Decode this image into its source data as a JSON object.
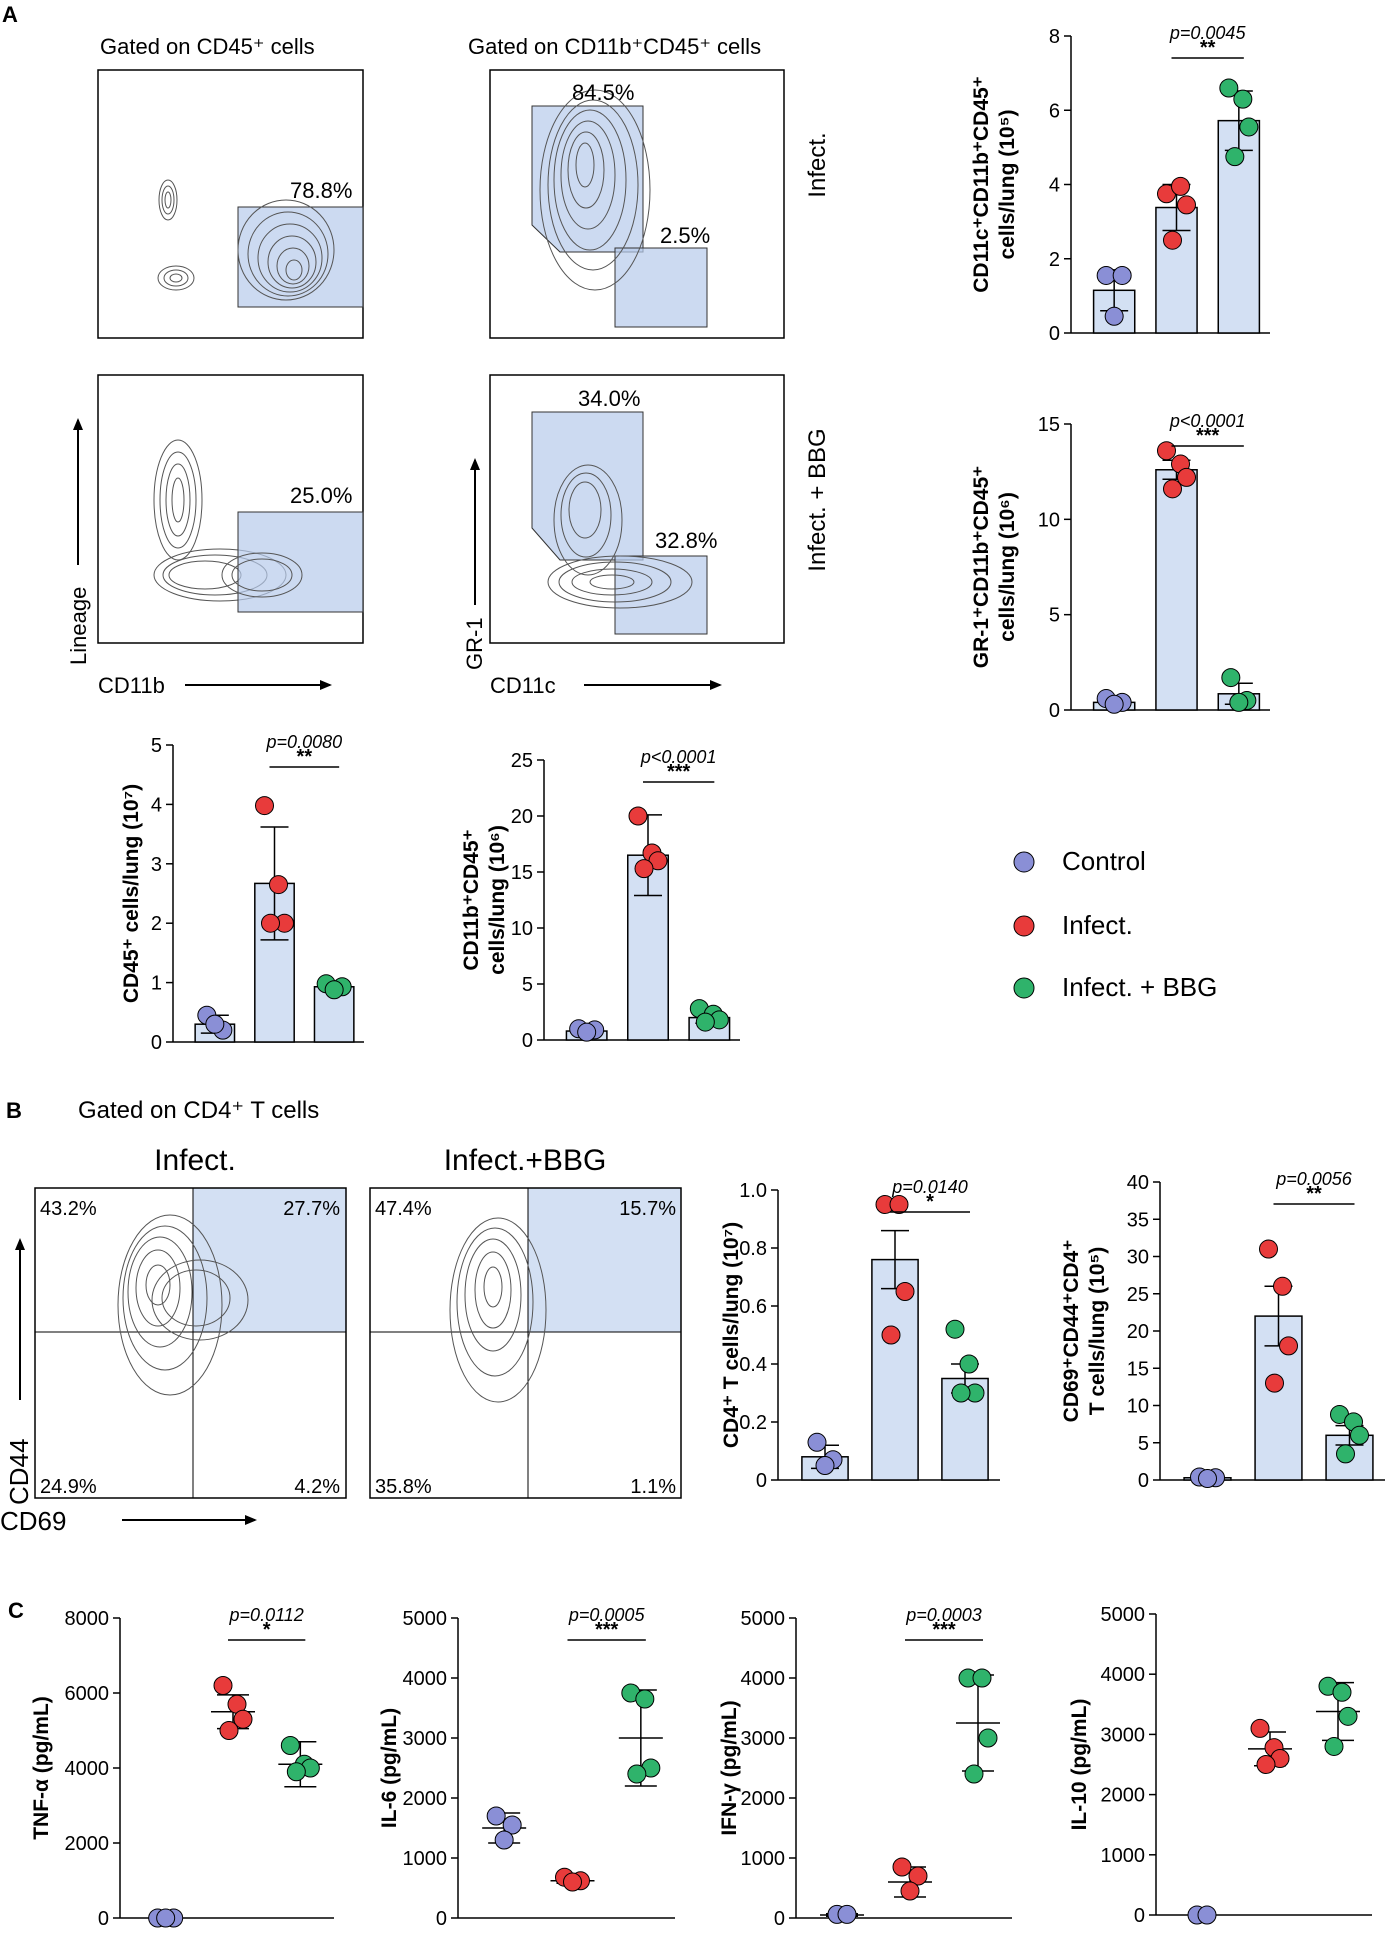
{
  "colors": {
    "control": "#8a8fd6",
    "infect": "#e83b3b",
    "bbg": "#2fb36b",
    "bar_fill": "#d3e0f3",
    "gate_fill": "#b7cbeb"
  },
  "panels": {
    "a": "A",
    "b": "B",
    "c": "C"
  },
  "legend": {
    "control": "Control",
    "infect": "Infect.",
    "bbg": "Infect. + BBG"
  },
  "flow_a": {
    "col1_title": "Gated on CD45⁺ cells",
    "col2_title": "Gated on CD11b⁺CD45⁺ cells",
    "row1_label": "Infect.",
    "row2_label": "Infect. + BBG",
    "col1_xaxis": "CD11b",
    "col1_yaxis": "Lineage",
    "col2_xaxis": "CD11c",
    "col2_yaxis": "GR-1",
    "p1_gate": "78.8%",
    "p2_gate": "25.0%",
    "p3_gr1": "84.5%",
    "p3_cd11c": "2.5%",
    "p4_gr1": "34.0%",
    "p4_cd11c": "32.8%"
  },
  "flow_b": {
    "gate_title": "Gated on CD4⁺ T cells",
    "title_left": "Infect.",
    "title_right": "Infect.+BBG",
    "xaxis": "CD69",
    "yaxis": "CD44",
    "left_q": [
      "43.2%",
      "27.7%",
      "24.9%",
      "4.2%"
    ],
    "right_q": [
      "47.4%",
      "15.7%",
      "35.8%",
      "1.1%"
    ]
  },
  "chart_data": [
    {
      "id": "cd11c",
      "type": "bar",
      "ylabel": "CD11c⁺CD11b⁺CD45⁺|cells/lung (10⁵)",
      "ylim": [
        0,
        8
      ],
      "yticks": [
        0,
        2,
        4,
        6,
        8
      ],
      "tick_labels": [
        "0",
        "2",
        "4",
        "6",
        "8"
      ],
      "series": [
        {
          "name": "Control",
          "mean": 1.15,
          "sd": 0.55,
          "points": [
            1.55,
            1.55,
            0.45
          ]
        },
        {
          "name": "Infect.",
          "mean": 3.38,
          "sd": 0.62,
          "points": [
            3.75,
            3.95,
            3.45,
            2.5
          ]
        },
        {
          "name": "Infect. + BBG",
          "mean": 5.72,
          "sd": 0.8,
          "points": [
            6.6,
            6.3,
            5.55,
            4.75
          ]
        }
      ],
      "sig": {
        "p": "p=0.0045",
        "stars": "**",
        "from": 1,
        "to": 2
      }
    },
    {
      "id": "gr1",
      "type": "bar",
      "ylabel": "GR-1⁺CD11b⁺CD45⁺|cells/lung (10⁶)",
      "ylim": [
        0,
        15
      ],
      "yticks": [
        0,
        5,
        10,
        15
      ],
      "tick_labels": [
        "0",
        "5",
        "10",
        "15"
      ],
      "series": [
        {
          "name": "Control",
          "mean": 0.4,
          "sd": 0.12,
          "points": [
            0.6,
            0.4,
            0.3
          ]
        },
        {
          "name": "Infect.",
          "mean": 12.6,
          "sd": 0.5,
          "points": [
            13.6,
            12.9,
            12.2,
            11.6
          ]
        },
        {
          "name": "Infect. + BBG",
          "mean": 0.85,
          "sd": 0.55,
          "points": [
            1.7,
            0.5,
            0.4
          ]
        }
      ],
      "sig": {
        "p": "p<0.0001",
        "stars": "***",
        "from": 1,
        "to": 2
      }
    },
    {
      "id": "cd45",
      "type": "bar",
      "ylabel": "CD45⁺ cells/lung (10⁷)",
      "ylim": [
        0,
        5
      ],
      "yticks": [
        0,
        1,
        2,
        3,
        4,
        5
      ],
      "tick_labels": [
        "0",
        "1",
        "2",
        "3",
        "4",
        "5"
      ],
      "series": [
        {
          "name": "Control",
          "mean": 0.3,
          "sd": 0.15,
          "points": [
            0.45,
            0.2,
            0.3
          ]
        },
        {
          "name": "Infect.",
          "mean": 2.67,
          "sd": 0.95,
          "points": [
            3.98,
            2.65,
            2.0,
            2.0
          ]
        },
        {
          "name": "Infect. + BBG",
          "mean": 0.93,
          "sd": 0.06,
          "points": [
            0.98,
            0.93,
            0.88
          ]
        }
      ],
      "sig": {
        "p": "p=0.0080",
        "stars": "**",
        "from": 1,
        "to": 2
      }
    },
    {
      "id": "cd11b",
      "type": "bar",
      "ylabel": "CD11b⁺CD45⁺|cells/lung (10⁶)",
      "ylim": [
        0,
        25
      ],
      "yticks": [
        0,
        5,
        10,
        15,
        20,
        25
      ],
      "tick_labels": [
        "0",
        "5",
        "10",
        "15",
        "20",
        "25"
      ],
      "series": [
        {
          "name": "Control",
          "mean": 0.8,
          "sd": 0.2,
          "points": [
            1.0,
            0.9,
            0.7
          ]
        },
        {
          "name": "Infect.",
          "mean": 16.5,
          "sd": 3.6,
          "points": [
            20.0,
            16.7,
            16.0,
            15.3
          ]
        },
        {
          "name": "Infect. + BBG",
          "mean": 2.0,
          "sd": 0.5,
          "points": [
            2.8,
            2.3,
            1.8,
            1.6
          ]
        }
      ],
      "sig": {
        "p": "p<0.0001",
        "stars": "***",
        "from": 1,
        "to": 2
      }
    },
    {
      "id": "cd4",
      "type": "bar",
      "ylabel": "CD4⁺ T cells/lung (10⁷)",
      "ylim": [
        0,
        1.0
      ],
      "yticks": [
        0,
        0.2,
        0.4,
        0.6,
        0.8,
        1.0
      ],
      "tick_labels": [
        "0",
        "0.2",
        "0.4",
        "0.6",
        "0.8",
        "1.0"
      ],
      "series": [
        {
          "name": "Control",
          "mean": 0.08,
          "sd": 0.04,
          "points": [
            0.13,
            0.07,
            0.05
          ]
        },
        {
          "name": "Infect.",
          "mean": 0.76,
          "sd": 0.1,
          "points": [
            0.95,
            0.95,
            0.65,
            0.5
          ]
        },
        {
          "name": "Infect. + BBG",
          "mean": 0.35,
          "sd": 0.05,
          "points": [
            0.52,
            0.4,
            0.3,
            0.3
          ]
        }
      ],
      "sig": {
        "p": "p=0.0140",
        "stars": "*",
        "from": 1,
        "to": 2
      }
    },
    {
      "id": "cd69",
      "type": "bar",
      "ylabel": "CD69⁺CD44⁺CD4⁺|T cells/lung (10⁵)",
      "ylim": [
        0,
        40
      ],
      "yticks": [
        0,
        5,
        10,
        15,
        20,
        25,
        30,
        35,
        40
      ],
      "tick_labels": [
        "0",
        "5",
        "10",
        "15",
        "20",
        "25",
        "30",
        "35",
        "40"
      ],
      "series": [
        {
          "name": "Control",
          "mean": 0.3,
          "sd": 0.1,
          "points": [
            0.4,
            0.3,
            0.2
          ]
        },
        {
          "name": "Infect.",
          "mean": 22.0,
          "sd": 4.0,
          "points": [
            31.0,
            26.0,
            18.0,
            13.0
          ]
        },
        {
          "name": "Infect. + BBG",
          "mean": 6.0,
          "sd": 1.3,
          "points": [
            8.8,
            7.8,
            6.0,
            3.5
          ]
        }
      ],
      "sig": {
        "p": "p=0.0056",
        "stars": "**",
        "from": 1,
        "to": 2
      }
    },
    {
      "id": "tnf",
      "type": "scatter",
      "ylabel": "TNF-α (pg/mL)",
      "ylim": [
        0,
        8000
      ],
      "yticks": [
        0,
        2000,
        4000,
        6000,
        8000
      ],
      "tick_labels": [
        "0",
        "2000",
        "4000",
        "6000",
        "8000"
      ],
      "series": [
        {
          "name": "Control",
          "mean": 0,
          "sd": 0,
          "points": [
            0,
            0,
            0
          ]
        },
        {
          "name": "Infect.",
          "mean": 5500,
          "sd": 450,
          "points": [
            6200,
            5700,
            5300,
            5000
          ]
        },
        {
          "name": "Infect. + BBG",
          "mean": 4100,
          "sd": 600,
          "points": [
            4600,
            4100,
            4000,
            3900
          ]
        }
      ],
      "sig": {
        "p": "p=0.0112",
        "stars": "*",
        "from": 1,
        "to": 2
      }
    },
    {
      "id": "il6",
      "type": "scatter",
      "ylabel": "IL-6 (pg/mL)",
      "ylim": [
        0,
        5000
      ],
      "yticks": [
        0,
        1000,
        2000,
        3000,
        4000,
        5000
      ],
      "tick_labels": [
        "0",
        "1000",
        "2000",
        "3000",
        "4000",
        "5000"
      ],
      "series": [
        {
          "name": "Control",
          "mean": 1500,
          "sd": 250,
          "points": [
            1700,
            1550,
            1300
          ]
        },
        {
          "name": "Infect.",
          "mean": 620,
          "sd": 40,
          "points": [
            680,
            620,
            600
          ]
        },
        {
          "name": "Infect. + BBG",
          "mean": 3000,
          "sd": 800,
          "points": [
            3750,
            3650,
            2500,
            2400
          ]
        }
      ],
      "sig": {
        "p": "p=0.0005",
        "stars": "***",
        "from": 1,
        "to": 2
      }
    },
    {
      "id": "ifn",
      "type": "scatter",
      "ylabel": "IFN-γ (pg/mL)",
      "ylim": [
        0,
        5000
      ],
      "yticks": [
        0,
        1000,
        2000,
        3000,
        4000,
        5000
      ],
      "tick_labels": [
        "0",
        "1000",
        "2000",
        "3000",
        "4000",
        "5000"
      ],
      "series": [
        {
          "name": "Control",
          "mean": 50,
          "sd": 20,
          "points": [
            60,
            60
          ]
        },
        {
          "name": "Infect.",
          "mean": 600,
          "sd": 250,
          "points": [
            850,
            700,
            450
          ]
        },
        {
          "name": "Infect. + BBG",
          "mean": 3250,
          "sd": 800,
          "points": [
            4000,
            4000,
            3000,
            2400
          ]
        }
      ],
      "sig": {
        "p": "p=0.0003",
        "stars": "***",
        "from": 1,
        "to": 2
      }
    },
    {
      "id": "il10",
      "type": "scatter",
      "ylabel": "IL-10 (pg/mL)",
      "ylim": [
        0,
        5000
      ],
      "yticks": [
        0,
        1000,
        2000,
        3000,
        4000,
        5000
      ],
      "tick_labels": [
        "0",
        "1000",
        "2000",
        "3000",
        "4000",
        "5000"
      ],
      "series": [
        {
          "name": "Control",
          "mean": 0,
          "sd": 0,
          "points": [
            0,
            0
          ]
        },
        {
          "name": "Infect.",
          "mean": 2760,
          "sd": 280,
          "points": [
            3100,
            2780,
            2600,
            2500
          ]
        },
        {
          "name": "Infect. + BBG",
          "mean": 3380,
          "sd": 480,
          "points": [
            3800,
            3700,
            3300,
            2800
          ]
        }
      ],
      "sig": null
    }
  ]
}
